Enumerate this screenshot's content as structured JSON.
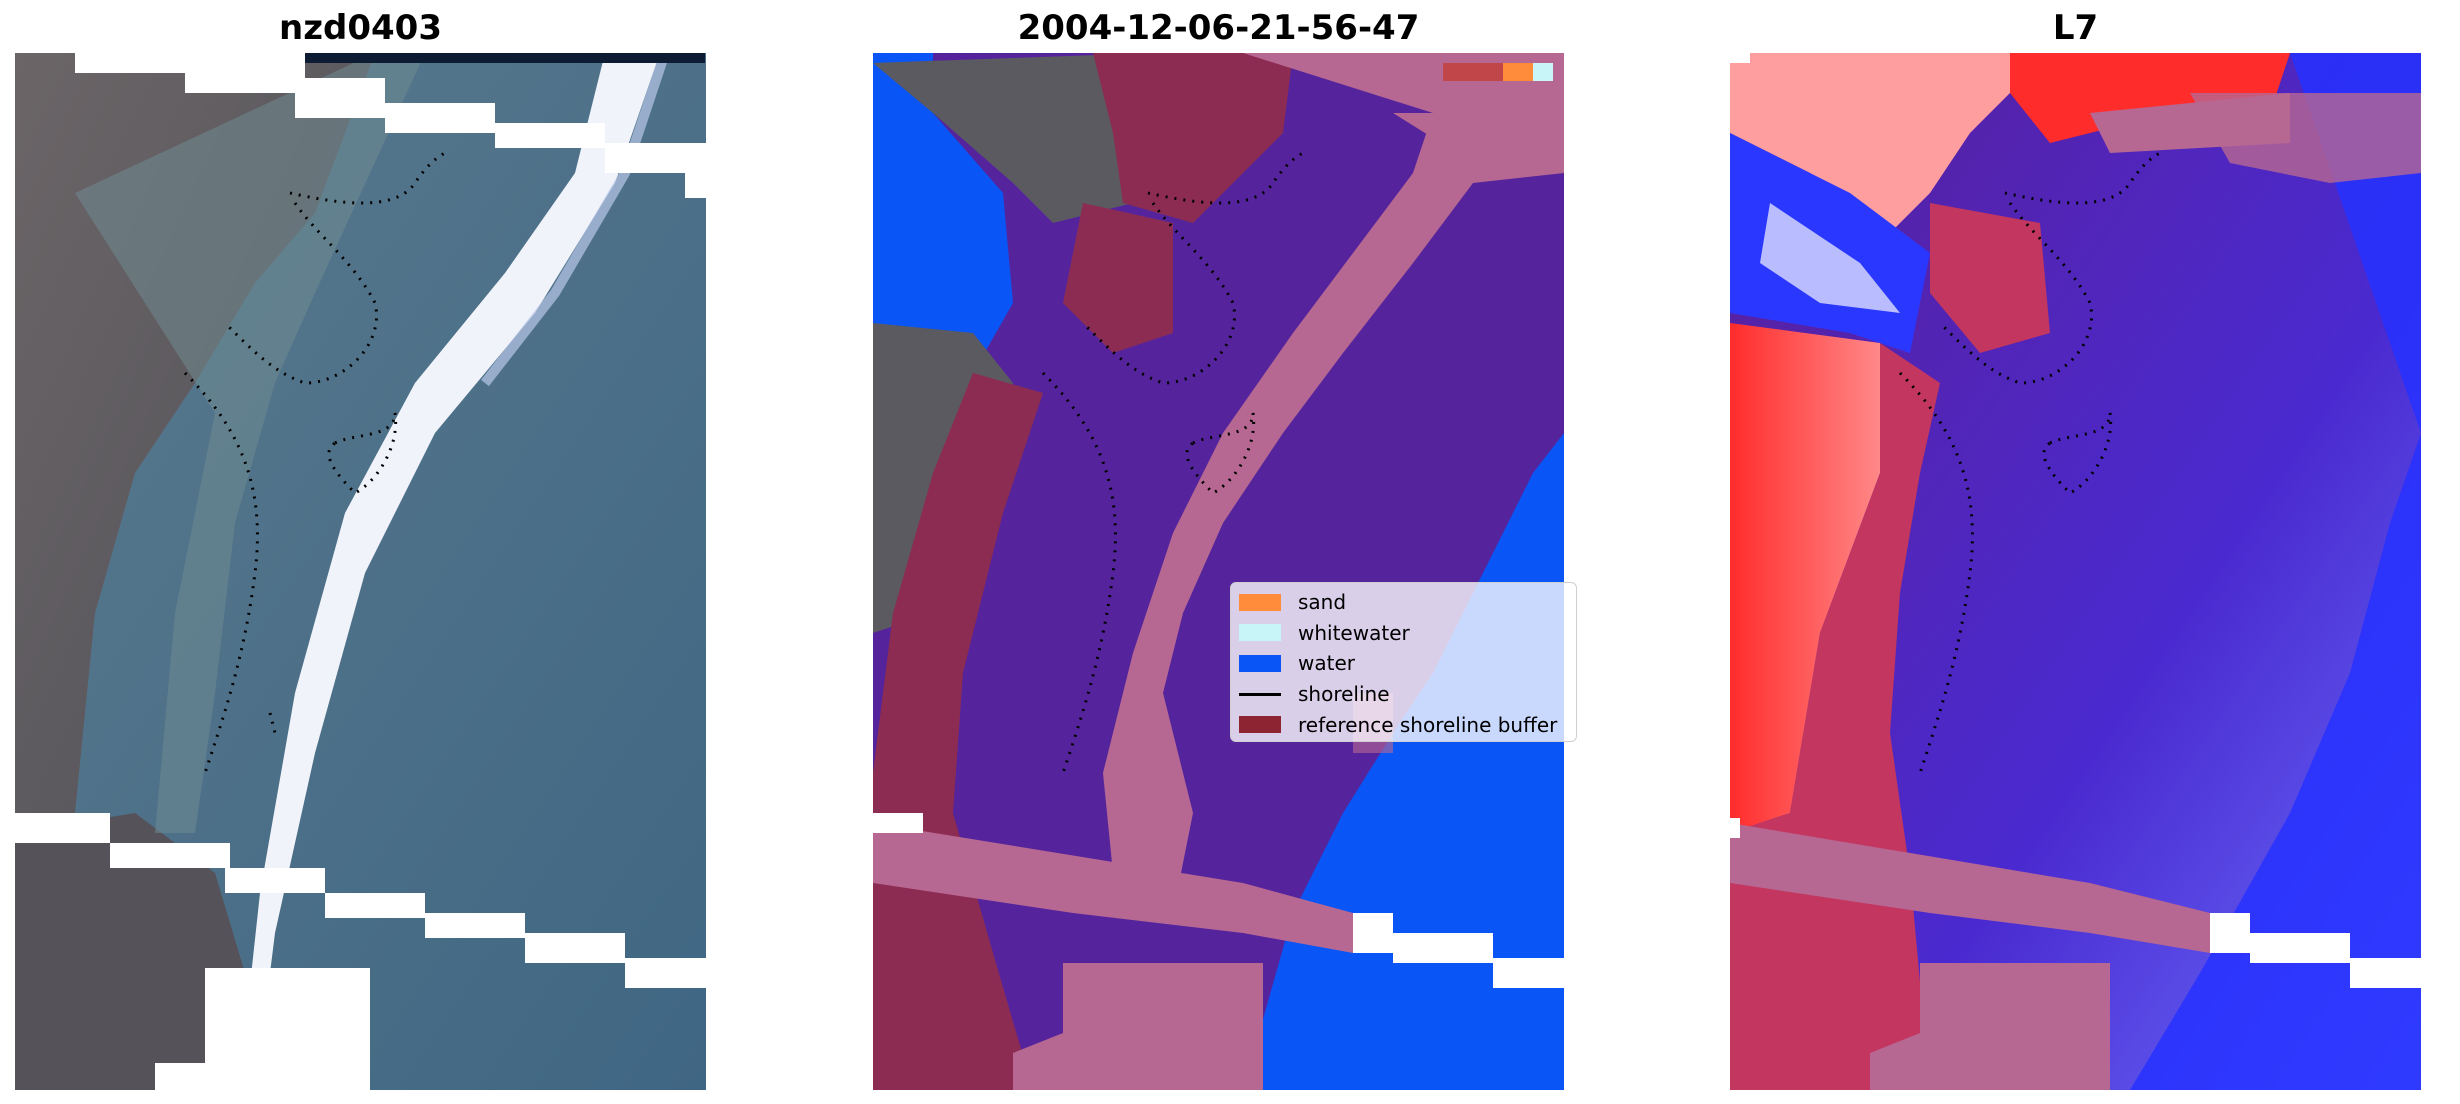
{
  "panels": [
    {
      "title": "nzd0403"
    },
    {
      "title": "2004-12-06-21-56-47"
    },
    {
      "title": "L7"
    }
  ],
  "legend": {
    "items": [
      {
        "label": "sand",
        "color": "#ff8c3a",
        "kind": "patch"
      },
      {
        "label": "whitewater",
        "color": "#c8f6f8",
        "kind": "patch"
      },
      {
        "label": "water",
        "color": "#0a55f5",
        "kind": "patch"
      },
      {
        "label": "shoreline",
        "color": "#000000",
        "kind": "line"
      },
      {
        "label": "reference shoreline buffer",
        "color": "#8c2431",
        "kind": "patch"
      }
    ]
  },
  "colors": {
    "rgb_land": "#5b5a60",
    "rgb_water": "#476d86",
    "rgb_surf": "#f3f5fb",
    "class_land_buffer": "#8d2c52",
    "class_water_purple": "#55249c",
    "class_pink": "#b76892",
    "index_red": "#ff2c2c",
    "index_blue": "#2631ff",
    "index_purple": "#5a1f9a",
    "index_crimson": "#c23660"
  }
}
